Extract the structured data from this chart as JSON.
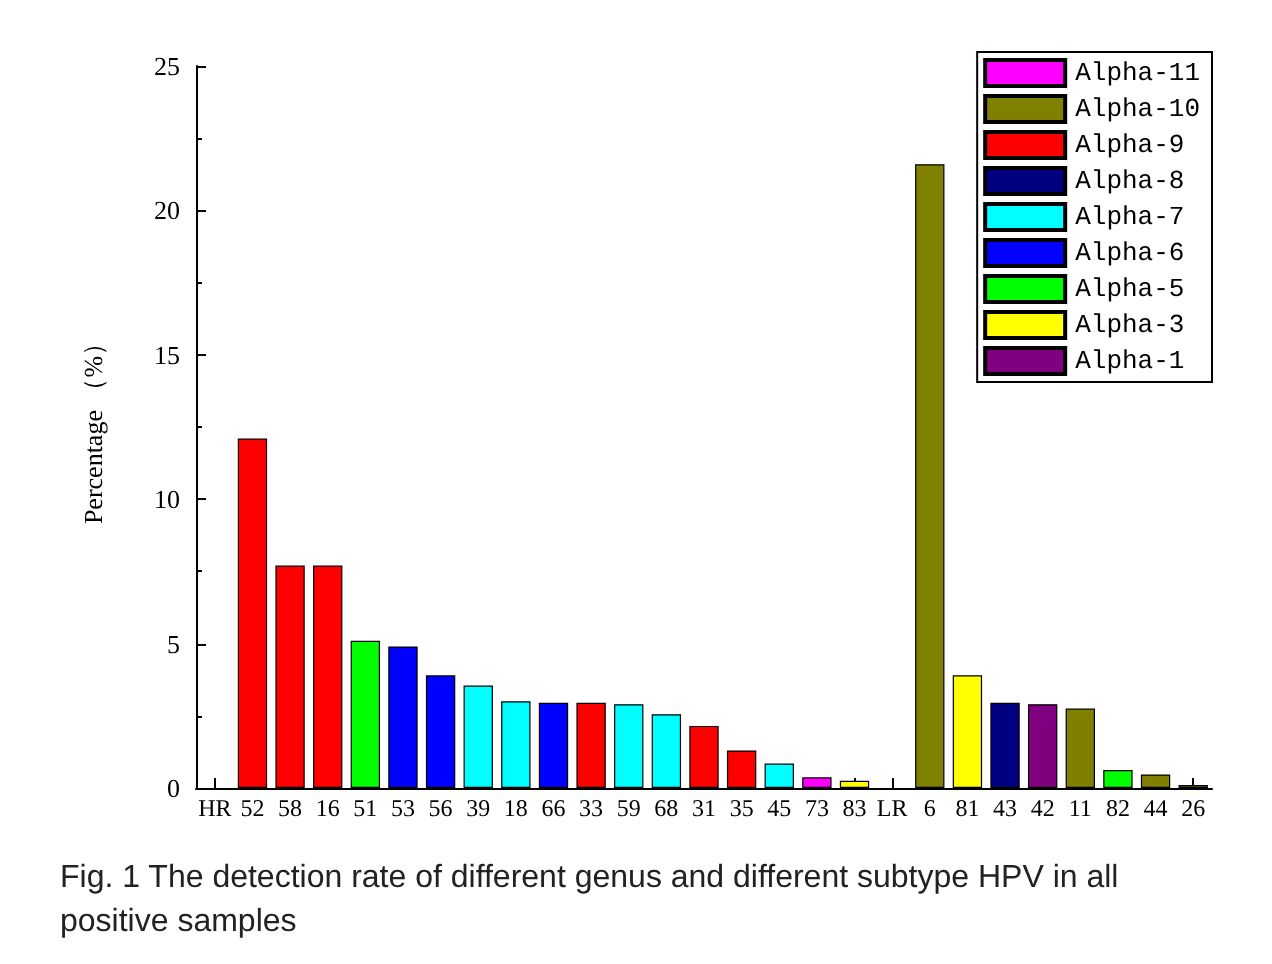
{
  "chart_data": {
    "type": "bar",
    "stacked": true,
    "ylabel": "Percentage （%）",
    "categories": [
      "HR",
      "52",
      "58",
      "16",
      "51",
      "53",
      "56",
      "39",
      "18",
      "66",
      "33",
      "59",
      "68",
      "31",
      "35",
      "45",
      "73",
      "83",
      "LR",
      "6",
      "81",
      "43",
      "42",
      "11",
      "82",
      "44",
      "26"
    ],
    "series": [
      {
        "name": "Alpha-11",
        "color": "#ff00ff",
        "values": [
          null,
          null,
          null,
          null,
          null,
          null,
          null,
          null,
          null,
          null,
          null,
          null,
          null,
          null,
          null,
          null,
          0.37,
          null,
          null,
          null,
          null,
          null,
          null,
          null,
          null,
          null,
          null
        ]
      },
      {
        "name": "Alpha-10",
        "color": "#808000",
        "values": [
          null,
          null,
          null,
          null,
          null,
          null,
          null,
          null,
          null,
          null,
          null,
          null,
          null,
          null,
          null,
          null,
          null,
          null,
          null,
          21.6,
          null,
          null,
          null,
          2.75,
          null,
          0.47,
          0.1
        ]
      },
      {
        "name": "Alpha-9",
        "color": "#ff0000",
        "values": [
          null,
          12.1,
          7.7,
          7.7,
          null,
          null,
          null,
          null,
          null,
          null,
          2.95,
          null,
          null,
          2.15,
          1.3,
          null,
          null,
          null,
          null,
          null,
          null,
          null,
          null,
          null,
          null,
          null,
          null
        ]
      },
      {
        "name": "Alpha-8",
        "color": "#000080",
        "values": [
          null,
          null,
          null,
          null,
          null,
          null,
          null,
          null,
          null,
          null,
          null,
          null,
          null,
          null,
          null,
          null,
          null,
          null,
          null,
          null,
          null,
          2.95,
          null,
          null,
          null,
          null,
          null
        ]
      },
      {
        "name": "Alpha-7",
        "color": "#00ffff",
        "values": [
          null,
          null,
          null,
          null,
          null,
          null,
          null,
          3.55,
          3.0,
          null,
          null,
          2.9,
          2.55,
          null,
          null,
          0.85,
          null,
          null,
          null,
          null,
          null,
          null,
          null,
          null,
          null,
          null,
          null
        ]
      },
      {
        "name": "Alpha-6",
        "color": "#0000ff",
        "values": [
          null,
          null,
          null,
          null,
          null,
          4.9,
          3.9,
          null,
          null,
          2.95,
          null,
          null,
          null,
          null,
          null,
          null,
          null,
          null,
          null,
          null,
          null,
          null,
          null,
          null,
          null,
          null,
          null
        ]
      },
      {
        "name": "Alpha-5",
        "color": "#00ff00",
        "values": [
          null,
          null,
          null,
          null,
          5.1,
          null,
          null,
          null,
          null,
          null,
          null,
          null,
          null,
          null,
          null,
          null,
          null,
          null,
          null,
          null,
          null,
          null,
          null,
          null,
          0.62,
          null,
          null
        ]
      },
      {
        "name": "Alpha-3",
        "color": "#ffff00",
        "values": [
          null,
          null,
          null,
          null,
          null,
          null,
          null,
          null,
          null,
          null,
          null,
          null,
          null,
          null,
          null,
          null,
          null,
          0.25,
          null,
          null,
          3.9,
          null,
          null,
          null,
          null,
          null,
          null
        ]
      },
      {
        "name": "Alpha-1",
        "color": "#800080",
        "values": [
          null,
          null,
          null,
          null,
          null,
          null,
          null,
          null,
          null,
          null,
          null,
          null,
          null,
          null,
          null,
          null,
          null,
          null,
          null,
          null,
          null,
          null,
          2.9,
          null,
          null,
          null,
          null
        ]
      }
    ],
    "ylim": [
      0,
      25
    ],
    "yticks": [
      0,
      5,
      10,
      15,
      20,
      25
    ],
    "grid": false,
    "legend": "top right",
    "annotations": [
      "Fig. 1 The detection rate of different genus and different subtype HPV in all positive samples"
    ]
  }
}
